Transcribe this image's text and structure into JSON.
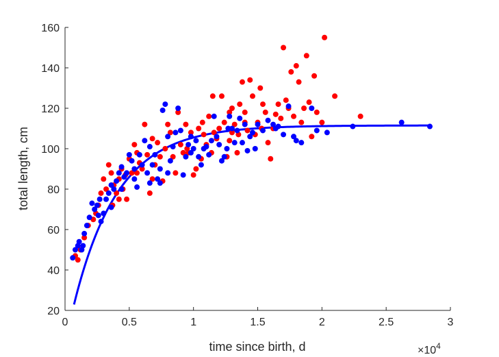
{
  "chart_data": {
    "type": "scatter",
    "title": "",
    "xlabel": "time since birth, d",
    "ylabel": "total length, cm",
    "x_scale_label": "×10",
    "x_scale_exponent": "4",
    "xlim": [
      0,
      30000
    ],
    "ylim": [
      20,
      160
    ],
    "xticks": [
      0,
      5000,
      10000,
      15000,
      20000,
      25000,
      30000
    ],
    "xtick_labels": [
      "0",
      "0.5",
      "1",
      "1.5",
      "2",
      "2.5",
      "3"
    ],
    "yticks": [
      20,
      40,
      60,
      80,
      100,
      120,
      140,
      160
    ],
    "ytick_labels": [
      "20",
      "40",
      "60",
      "80",
      "100",
      "120",
      "140",
      "160"
    ],
    "grid": false,
    "box": false,
    "series": [
      {
        "color": "#ff0000",
        "points": [
          [
            800,
            47
          ],
          [
            1000,
            45
          ],
          [
            1200,
            50
          ],
          [
            1500,
            56
          ],
          [
            1800,
            62
          ],
          [
            2200,
            65
          ],
          [
            2600,
            72
          ],
          [
            2800,
            78
          ],
          [
            3000,
            85
          ],
          [
            3200,
            80
          ],
          [
            3400,
            92
          ],
          [
            3600,
            88
          ],
          [
            3800,
            82
          ],
          [
            4000,
            78
          ],
          [
            4200,
            75
          ],
          [
            4400,
            90
          ],
          [
            4500,
            80
          ],
          [
            4700,
            87
          ],
          [
            4800,
            75
          ],
          [
            5000,
            95
          ],
          [
            5200,
            88
          ],
          [
            5400,
            102
          ],
          [
            5600,
            98
          ],
          [
            5800,
            93
          ],
          [
            6000,
            90
          ],
          [
            6200,
            112
          ],
          [
            6400,
            97
          ],
          [
            6600,
            78
          ],
          [
            6800,
            85
          ],
          [
            7000,
            92
          ],
          [
            7200,
            103
          ],
          [
            7400,
            96
          ],
          [
            7600,
            84
          ],
          [
            7800,
            100
          ],
          [
            8000,
            112
          ],
          [
            8200,
            108
          ],
          [
            8400,
            96
          ],
          [
            8600,
            88
          ],
          [
            8800,
            118
          ],
          [
            9000,
            102
          ],
          [
            9200,
            98
          ],
          [
            9400,
            112
          ],
          [
            9600,
            98
          ],
          [
            9800,
            108
          ],
          [
            10000,
            87
          ],
          [
            10200,
            90
          ],
          [
            10400,
            110
          ],
          [
            10600,
            95
          ],
          [
            10800,
            107
          ],
          [
            11000,
            102
          ],
          [
            11200,
            116
          ],
          [
            11400,
            98
          ],
          [
            11600,
            108
          ],
          [
            11800,
            105
          ],
          [
            12000,
            110
          ],
          [
            12200,
            126
          ],
          [
            12400,
            113
          ],
          [
            12600,
            96
          ],
          [
            12800,
            104
          ],
          [
            13000,
            108
          ],
          [
            13200,
            112
          ],
          [
            13400,
            98
          ],
          [
            13600,
            122
          ],
          [
            13800,
            133
          ],
          [
            14000,
            118
          ],
          [
            14200,
            109
          ],
          [
            14400,
            134
          ],
          [
            14600,
            126
          ],
          [
            14800,
            107
          ],
          [
            15000,
            113
          ],
          [
            15200,
            130
          ],
          [
            15400,
            122
          ],
          [
            15600,
            118
          ],
          [
            15800,
            103
          ],
          [
            16000,
            95
          ],
          [
            16200,
            110
          ],
          [
            16400,
            117
          ],
          [
            16600,
            122
          ],
          [
            16800,
            115
          ],
          [
            17000,
            150
          ],
          [
            17200,
            124
          ],
          [
            17400,
            120
          ],
          [
            17600,
            138
          ],
          [
            17800,
            116
          ],
          [
            18000,
            141
          ],
          [
            18200,
            133
          ],
          [
            18400,
            113
          ],
          [
            18600,
            120
          ],
          [
            18800,
            146
          ],
          [
            19000,
            123
          ],
          [
            19200,
            106
          ],
          [
            19400,
            136
          ],
          [
            19600,
            118
          ],
          [
            20000,
            113
          ],
          [
            20200,
            155
          ],
          [
            21000,
            126
          ],
          [
            23000,
            116
          ],
          [
            13000,
            120
          ],
          [
            14000,
            113
          ],
          [
            11500,
            126
          ],
          [
            10700,
            113
          ],
          [
            12800,
            118
          ],
          [
            15300,
            110
          ],
          [
            9500,
            100
          ],
          [
            6800,
            105
          ],
          [
            5600,
            88
          ],
          [
            4200,
            85
          ],
          [
            3700,
            72
          ],
          [
            2400,
            68
          ],
          [
            13500,
            107
          ]
        ]
      },
      {
        "color": "#0000ff",
        "points": [
          [
            600,
            46
          ],
          [
            800,
            50
          ],
          [
            1000,
            52
          ],
          [
            1100,
            54
          ],
          [
            1300,
            50
          ],
          [
            1500,
            58
          ],
          [
            1700,
            62
          ],
          [
            1900,
            66
          ],
          [
            2100,
            73
          ],
          [
            2300,
            70
          ],
          [
            2500,
            72
          ],
          [
            2700,
            75
          ],
          [
            2800,
            64
          ],
          [
            3000,
            68
          ],
          [
            3200,
            75
          ],
          [
            3400,
            78
          ],
          [
            3600,
            82
          ],
          [
            3800,
            80
          ],
          [
            4000,
            84
          ],
          [
            4200,
            88
          ],
          [
            4400,
            91
          ],
          [
            4600,
            86
          ],
          [
            4800,
            88
          ],
          [
            5000,
            97
          ],
          [
            5200,
            94
          ],
          [
            5400,
            85
          ],
          [
            5600,
            81
          ],
          [
            5800,
            97
          ],
          [
            6000,
            92
          ],
          [
            6200,
            104
          ],
          [
            6400,
            88
          ],
          [
            6600,
            83
          ],
          [
            6800,
            92
          ],
          [
            7000,
            97
          ],
          [
            7200,
            85
          ],
          [
            7400,
            90
          ],
          [
            7600,
            119
          ],
          [
            7800,
            122
          ],
          [
            8000,
            106
          ],
          [
            8200,
            94
          ],
          [
            8400,
            101
          ],
          [
            8600,
            108
          ],
          [
            8800,
            120
          ],
          [
            9000,
            109
          ],
          [
            9200,
            87
          ],
          [
            9400,
            96
          ],
          [
            9600,
            102
          ],
          [
            9800,
            98
          ],
          [
            10000,
            100
          ],
          [
            10200,
            104
          ],
          [
            10400,
            96
          ],
          [
            10600,
            92
          ],
          [
            10800,
            100
          ],
          [
            11000,
            101
          ],
          [
            11200,
            97
          ],
          [
            11400,
            104
          ],
          [
            11600,
            116
          ],
          [
            11800,
            106
          ],
          [
            12000,
            102
          ],
          [
            12200,
            94
          ],
          [
            12400,
            96
          ],
          [
            12600,
            100
          ],
          [
            12800,
            116
          ],
          [
            13000,
            110
          ],
          [
            13200,
            103
          ],
          [
            13400,
            109
          ],
          [
            13600,
            115
          ],
          [
            13800,
            103
          ],
          [
            14000,
            112
          ],
          [
            14200,
            99
          ],
          [
            14400,
            106
          ],
          [
            14600,
            108
          ],
          [
            14800,
            100
          ],
          [
            15000,
            112
          ],
          [
            15400,
            109
          ],
          [
            15800,
            114
          ],
          [
            16200,
            112
          ],
          [
            16600,
            111
          ],
          [
            17000,
            107
          ],
          [
            17400,
            121
          ],
          [
            17800,
            106
          ],
          [
            18000,
            104
          ],
          [
            18400,
            103
          ],
          [
            19200,
            120
          ],
          [
            19600,
            109
          ],
          [
            20400,
            108
          ],
          [
            22400,
            111
          ],
          [
            26200,
            113
          ],
          [
            28400,
            111
          ],
          [
            8000,
            88
          ],
          [
            7400,
            83
          ],
          [
            5400,
            90
          ],
          [
            4400,
            80
          ],
          [
            3600,
            71
          ],
          [
            2600,
            67
          ],
          [
            1400,
            52
          ],
          [
            12700,
            110
          ],
          [
            9800,
            106
          ],
          [
            6600,
            101
          ],
          [
            16400,
            110
          ]
        ]
      }
    ],
    "fit_curve": {
      "color": "#0000ff",
      "model": "y = Linf - (Linf - L0) * exp(-k * x)",
      "Linf": 111.5,
      "L0": 3,
      "k": 0.00029,
      "x_range": [
        700,
        28400
      ]
    }
  }
}
